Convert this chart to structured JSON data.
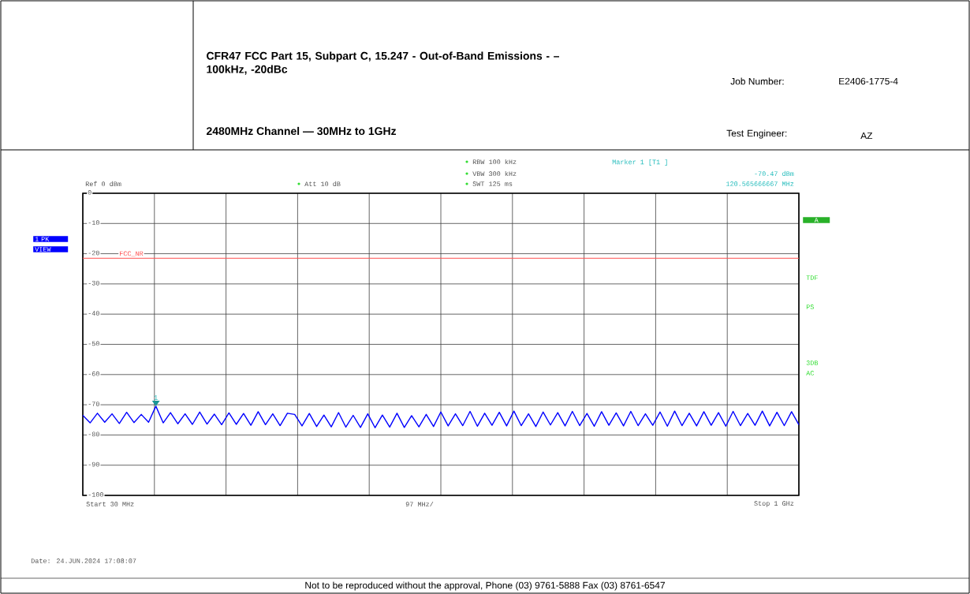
{
  "chart_data": {
    "type": "line",
    "title": "CFR47 FCC Part 15, Subpart C, 15.247 - Out-of-Band Emissions - – 100kHz, -20dBc",
    "subtitle": "2480MHz Channel — 30MHz to 1GHz",
    "categories": [
      null,
      null,
      null,
      null,
      null,
      null,
      null,
      null,
      null,
      null,
      null,
      null,
      null,
      null,
      null,
      null,
      null,
      null,
      null,
      null,
      null,
      null,
      null,
      null,
      null,
      null,
      null,
      null,
      null,
      null,
      null,
      null,
      null,
      null,
      null,
      null,
      null,
      null,
      null,
      null,
      null,
      null,
      null,
      null,
      null,
      null,
      null,
      null,
      null,
      null,
      null,
      null,
      null,
      null,
      null,
      null,
      null,
      null,
      null,
      null,
      null,
      null,
      null,
      null,
      null,
      null,
      null,
      null,
      null,
      null,
      null,
      null,
      null,
      null,
      null,
      null,
      null,
      null,
      null,
      null,
      null,
      null,
      null,
      null,
      null,
      null,
      null,
      null,
      null,
      null,
      null,
      null,
      null,
      null,
      null,
      null,
      null,
      null,
      null
    ],
    "values": [
      -73.5,
      -76,
      -72.8,
      -75.8,
      -73,
      -76.2,
      -72.5,
      -75.9,
      -73.2,
      -75.8,
      -70.47,
      -76,
      -72.6,
      -76.3,
      -73,
      -76.5,
      -72.4,
      -76.4,
      -73.1,
      -76.6,
      -72.7,
      -76.5,
      -72.9,
      -76.8,
      -72.3,
      -76.6,
      -73,
      -76.9,
      -72.8,
      -73.2,
      -77,
      -72.9,
      -77.2,
      -73.4,
      -77.3,
      -72.6,
      -77.4,
      -73.5,
      -77.5,
      -73,
      -77.6,
      -73.4,
      -77.4,
      -72.8,
      -77.5,
      -73.6,
      -77.3,
      -73.2,
      -77.2,
      -72.4,
      -77,
      -73,
      -76.9,
      -72.2,
      -77.1,
      -72.8,
      -76.8,
      -72.5,
      -77,
      -72.1,
      -76.9,
      -73,
      -77.2,
      -72.4,
      -76.7,
      -72.6,
      -77,
      -72.2,
      -76.9,
      -72.9,
      -77.1,
      -72.3,
      -76.8,
      -72.7,
      -77,
      -72.2,
      -76.9,
      -73,
      -76.8,
      -72.4,
      -77.1,
      -72.1,
      -76.9,
      -72.8,
      -77,
      -72.3,
      -76.8,
      -72.6,
      -77.1,
      -72.2,
      -76.9,
      -72.9,
      -76.8,
      -72.1,
      -77,
      -72.5,
      -76.9,
      -72.3,
      -76.6
    ],
    "color": "#0000ff",
    "marker": "none",
    "line_style": "solid",
    "ylim": [
      -100,
      0
    ],
    "yticks": [
      0,
      -10,
      -20,
      -30,
      -40,
      -50,
      -60,
      -70,
      -80,
      -90,
      -100
    ],
    "grid": true,
    "ref_lines": [
      {
        "axis": "y",
        "value": -21.5,
        "label": "FCC_NR",
        "color": "#ff5050"
      }
    ],
    "annotations": [
      "Job Number:",
      "E2406-1775-4",
      "Test Engineer:",
      "AZ",
      "RBW 100 kHz",
      "VBW 300 kHz",
      "SWT 125 ms",
      "Ref 0 dBm",
      "Att 10 dB",
      "Marker 1 [T1 ]",
      "-70.47 dBm",
      "120.565666667 MHz",
      "1 PK",
      "VIEW",
      "A",
      "TDF",
      "PS",
      "3DB",
      "AC",
      "Date: 24.JUN.2024 17:08:07",
      "Not to be reproduced without the approval, Phone (03) 9761-5888 Fax (03) 8761-6547",
      "97 MHz/",
      "Start 30 MHz",
      "Stop 1 GHz",
      {
        "text": "1",
        "y": -70.47
      }
    ]
  }
}
